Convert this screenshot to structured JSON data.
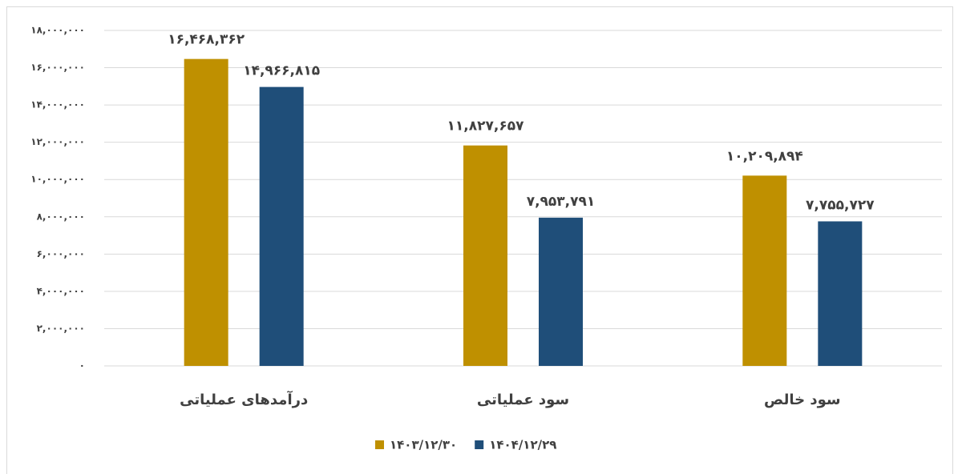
{
  "chart_data": {
    "type": "bar",
    "categories": [
      "درآمدهای عملیاتی",
      "سود عملیاتی",
      "سود خالص"
    ],
    "series": [
      {
        "name": "۱۴۰۳/۱۲/۳۰",
        "color": "#bf9000",
        "values": [
          16468362,
          11827657,
          10209894
        ],
        "value_labels": [
          "۱۶,۴۶۸,۳۶۲",
          "۱۱,۸۲۷,۶۵۷",
          "۱۰,۲۰۹,۸۹۴"
        ]
      },
      {
        "name": "۱۴۰۴/۱۲/۲۹",
        "color": "#1f4e79",
        "values": [
          14966815,
          7953791,
          7755727
        ],
        "value_labels": [
          "۱۴,۹۶۶,۸۱۵",
          "۷,۹۵۳,۷۹۱",
          "۷,۷۵۵,۷۲۷"
        ]
      }
    ],
    "ylim": [
      0,
      18000000
    ],
    "yticks": [
      {
        "value": 0,
        "label": "۰"
      },
      {
        "value": 2000000,
        "label": "۲,۰۰۰,۰۰۰"
      },
      {
        "value": 4000000,
        "label": "۴,۰۰۰,۰۰۰"
      },
      {
        "value": 6000000,
        "label": "۶,۰۰۰,۰۰۰"
      },
      {
        "value": 8000000,
        "label": "۸,۰۰۰,۰۰۰"
      },
      {
        "value": 10000000,
        "label": "۱۰,۰۰۰,۰۰۰"
      },
      {
        "value": 12000000,
        "label": "۱۲,۰۰۰,۰۰۰"
      },
      {
        "value": 14000000,
        "label": "۱۴,۰۰۰,۰۰۰"
      },
      {
        "value": 16000000,
        "label": "۱۶,۰۰۰,۰۰۰"
      },
      {
        "value": 18000000,
        "label": "۱۸,۰۰۰,۰۰۰"
      }
    ],
    "grid": true,
    "legend": "bottom"
  }
}
